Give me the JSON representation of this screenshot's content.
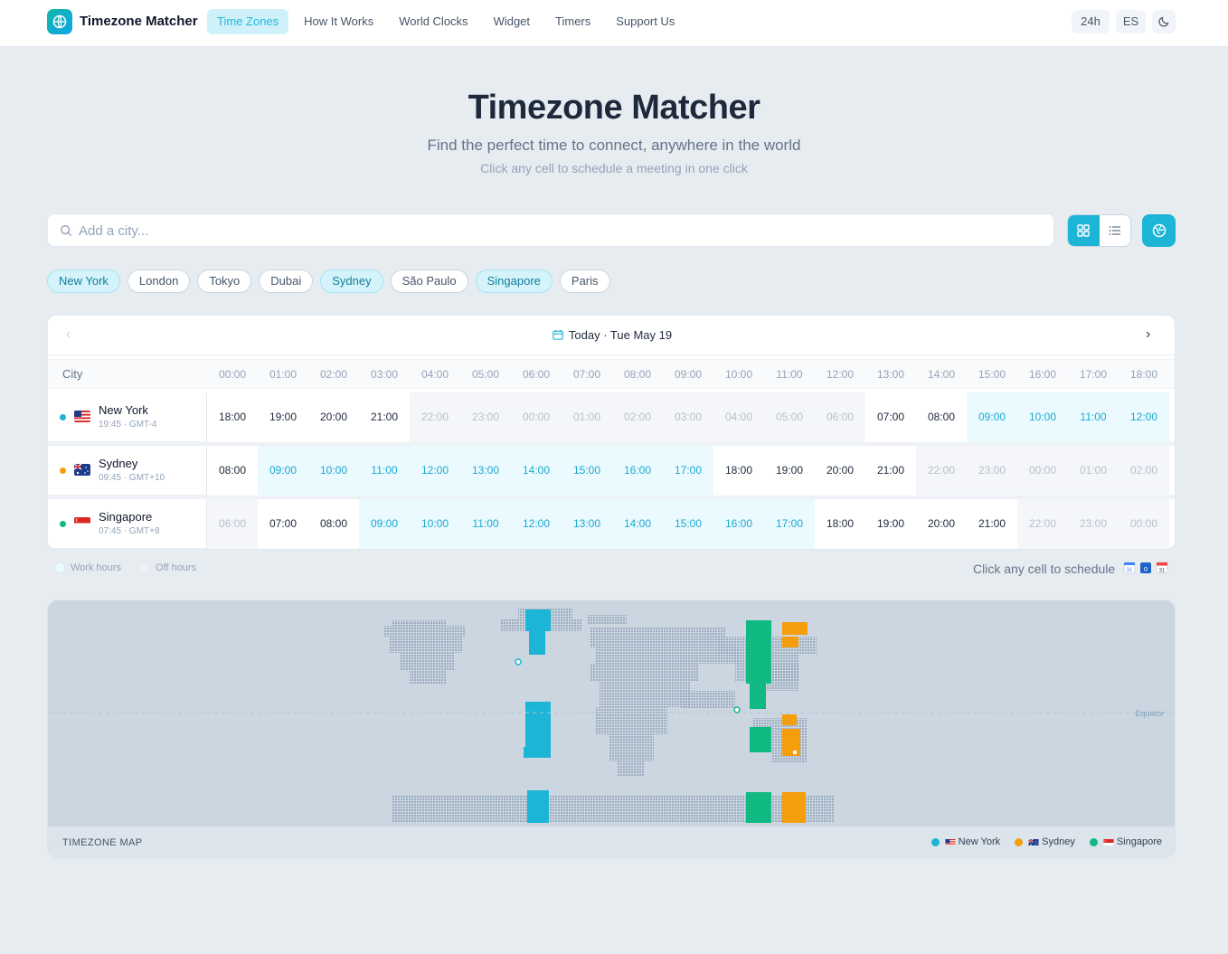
{
  "app": {
    "brand": "Timezone Matcher"
  },
  "nav": {
    "items": [
      {
        "label": "Time Zones",
        "active": true
      },
      {
        "label": "How It Works",
        "active": false
      },
      {
        "label": "World Clocks",
        "active": false
      },
      {
        "label": "Widget",
        "active": false
      },
      {
        "label": "Timers",
        "active": false
      },
      {
        "label": "Support Us",
        "active": false
      }
    ],
    "format_toggle": "24h",
    "language": "ES",
    "theme_icon": "moon-icon"
  },
  "hero": {
    "title": "Timezone Matcher",
    "subtitle": "Find the perfect time to connect, anywhere in the world",
    "hint": "Click any cell to schedule a meeting in one click"
  },
  "search": {
    "placeholder": "Add a city...",
    "value": ""
  },
  "chips": [
    {
      "label": "New York",
      "active": true
    },
    {
      "label": "London",
      "active": false
    },
    {
      "label": "Tokyo",
      "active": false
    },
    {
      "label": "Dubai",
      "active": false
    },
    {
      "label": "Sydney",
      "active": true
    },
    {
      "label": "São Paulo",
      "active": false
    },
    {
      "label": "Singapore",
      "active": true
    },
    {
      "label": "Paris",
      "active": false
    }
  ],
  "table": {
    "date_label": "Today · Tue May 19",
    "city_header": "City",
    "hours": [
      "00:00",
      "01:00",
      "02:00",
      "03:00",
      "04:00",
      "05:00",
      "06:00",
      "07:00",
      "08:00",
      "09:00",
      "10:00",
      "11:00",
      "12:00",
      "13:00",
      "14:00",
      "15:00",
      "16:00",
      "17:00",
      "18:00"
    ],
    "rows": [
      {
        "city": "New York",
        "meta": "19:45 · GMT-4",
        "dot_color": "#1cb5d6",
        "flag": "us",
        "cells": [
          {
            "t": "18:00",
            "s": "norm"
          },
          {
            "t": "19:00",
            "s": "norm"
          },
          {
            "t": "20:00",
            "s": "norm"
          },
          {
            "t": "21:00",
            "s": "norm"
          },
          {
            "t": "22:00",
            "s": "off"
          },
          {
            "t": "23:00",
            "s": "off"
          },
          {
            "t": "00:00",
            "s": "off"
          },
          {
            "t": "01:00",
            "s": "off"
          },
          {
            "t": "02:00",
            "s": "off"
          },
          {
            "t": "03:00",
            "s": "off"
          },
          {
            "t": "04:00",
            "s": "off"
          },
          {
            "t": "05:00",
            "s": "off"
          },
          {
            "t": "06:00",
            "s": "off"
          },
          {
            "t": "07:00",
            "s": "norm"
          },
          {
            "t": "08:00",
            "s": "norm"
          },
          {
            "t": "09:00",
            "s": "work"
          },
          {
            "t": "10:00",
            "s": "work"
          },
          {
            "t": "11:00",
            "s": "work"
          },
          {
            "t": "12:00",
            "s": "work"
          }
        ]
      },
      {
        "city": "Sydney",
        "meta": "09:45 · GMT+10",
        "dot_color": "#f59e0b",
        "flag": "au",
        "cells": [
          {
            "t": "08:00",
            "s": "norm"
          },
          {
            "t": "09:00",
            "s": "work"
          },
          {
            "t": "10:00",
            "s": "work"
          },
          {
            "t": "11:00",
            "s": "work"
          },
          {
            "t": "12:00",
            "s": "work"
          },
          {
            "t": "13:00",
            "s": "work"
          },
          {
            "t": "14:00",
            "s": "work"
          },
          {
            "t": "15:00",
            "s": "work"
          },
          {
            "t": "16:00",
            "s": "work"
          },
          {
            "t": "17:00",
            "s": "work"
          },
          {
            "t": "18:00",
            "s": "norm"
          },
          {
            "t": "19:00",
            "s": "norm"
          },
          {
            "t": "20:00",
            "s": "norm"
          },
          {
            "t": "21:00",
            "s": "norm"
          },
          {
            "t": "22:00",
            "s": "off"
          },
          {
            "t": "23:00",
            "s": "off"
          },
          {
            "t": "00:00",
            "s": "off"
          },
          {
            "t": "01:00",
            "s": "off"
          },
          {
            "t": "02:00",
            "s": "off"
          }
        ]
      },
      {
        "city": "Singapore",
        "meta": "07:45 · GMT+8",
        "dot_color": "#10b981",
        "flag": "sg",
        "cells": [
          {
            "t": "06:00",
            "s": "off"
          },
          {
            "t": "07:00",
            "s": "norm"
          },
          {
            "t": "08:00",
            "s": "norm"
          },
          {
            "t": "09:00",
            "s": "work"
          },
          {
            "t": "10:00",
            "s": "work"
          },
          {
            "t": "11:00",
            "s": "work"
          },
          {
            "t": "12:00",
            "s": "work"
          },
          {
            "t": "13:00",
            "s": "work"
          },
          {
            "t": "14:00",
            "s": "work"
          },
          {
            "t": "15:00",
            "s": "work"
          },
          {
            "t": "16:00",
            "s": "work"
          },
          {
            "t": "17:00",
            "s": "work"
          },
          {
            "t": "18:00",
            "s": "norm"
          },
          {
            "t": "19:00",
            "s": "norm"
          },
          {
            "t": "20:00",
            "s": "norm"
          },
          {
            "t": "21:00",
            "s": "norm"
          },
          {
            "t": "22:00",
            "s": "off"
          },
          {
            "t": "23:00",
            "s": "off"
          },
          {
            "t": "00:00",
            "s": "off"
          }
        ]
      }
    ]
  },
  "legend": {
    "work": "Work hours",
    "off": "Off hours",
    "schedule_note": "Click any cell to schedule"
  },
  "map": {
    "title": "TIMEZONE MAP",
    "equator": "Equator",
    "legend": [
      {
        "label": "New York",
        "color": "#1cb5d6",
        "flag": "us"
      },
      {
        "label": "Sydney",
        "color": "#f59e0b",
        "flag": "au"
      },
      {
        "label": "Singapore",
        "color": "#10b981",
        "flag": "sg"
      }
    ]
  },
  "colors": {
    "accent": "#1cb5d6",
    "work_bg": "#eafaff",
    "off_bg": "#f4f6f9"
  }
}
